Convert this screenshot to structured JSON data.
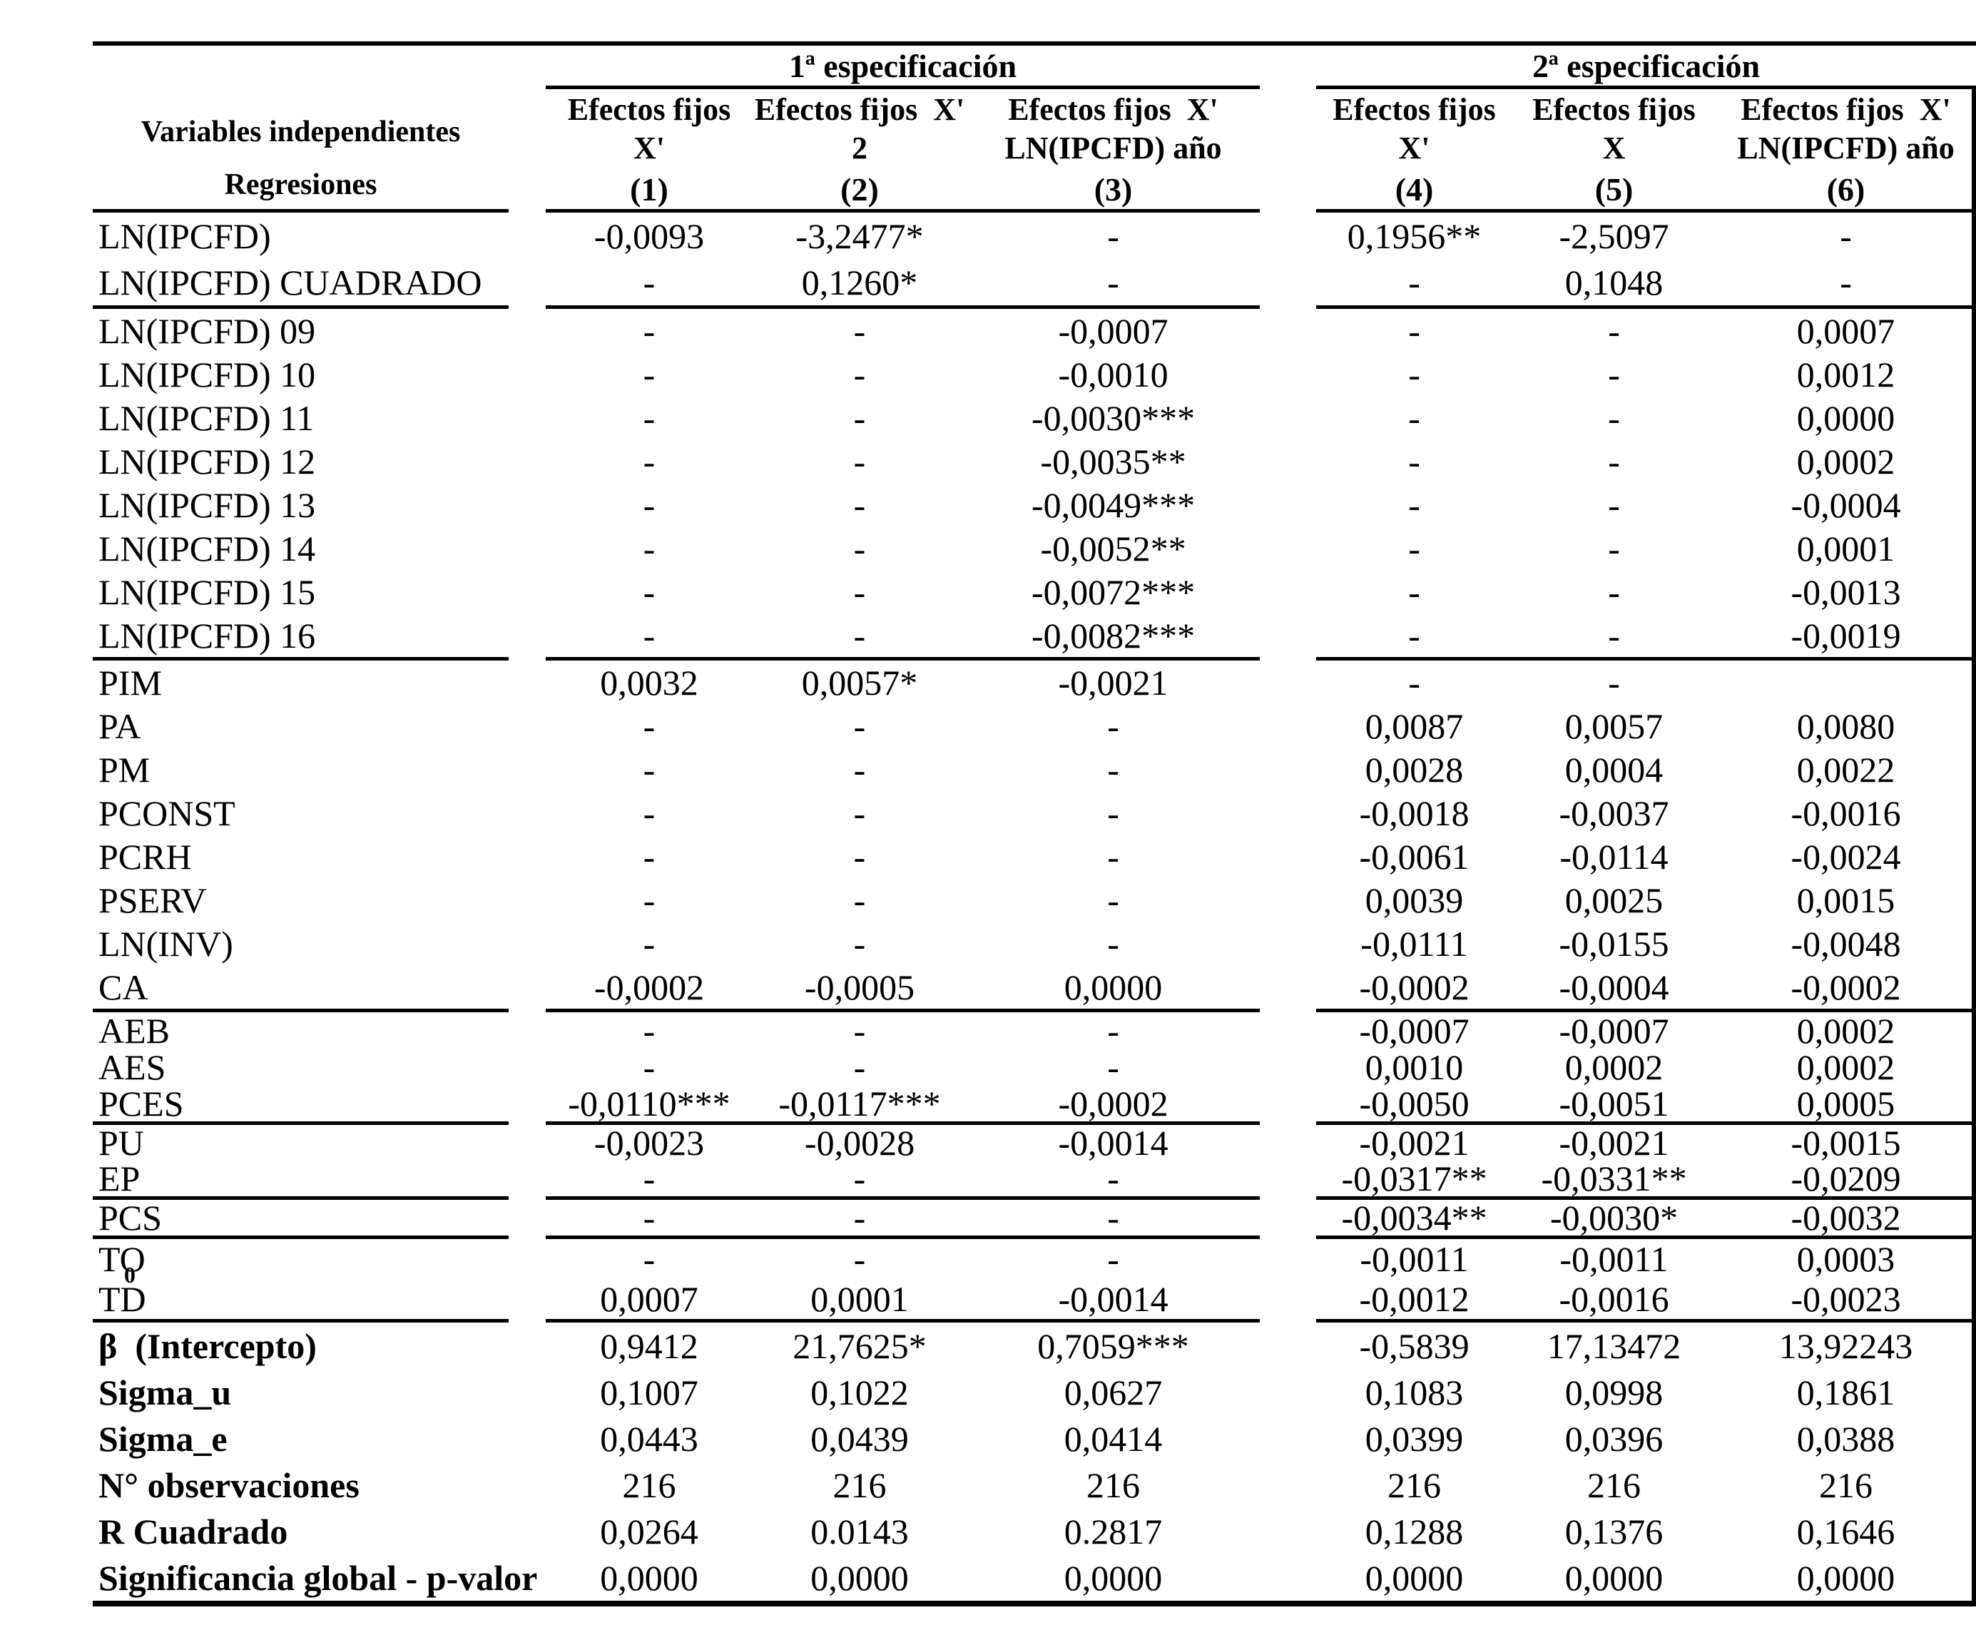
{
  "page": {
    "background": "#ffffff",
    "text_color": "#000000"
  },
  "table": {
    "spec_groups": {
      "group1": "1ª especificación",
      "group2": "2ª especificación"
    },
    "corner": {
      "line1": "Variables independientes",
      "line2": "Regresiones"
    },
    "col_headers": [
      {
        "line1": "Efectos fijos",
        "line2": "X'",
        "num": "(1)"
      },
      {
        "line1": "Efectos fijos  X'",
        "line2": "2",
        "num": "(2)"
      },
      {
        "line1": "Efectos fijos  X'",
        "line2": "LN(IPCFD) año",
        "num": "(3)"
      },
      {
        "line1": "Efectos fijos",
        "line2": "X'",
        "num": "(4)"
      },
      {
        "line1": "Efectos fijos",
        "line2": "X",
        "num": "(5)"
      },
      {
        "line1": "Efectos fijos  X'",
        "line2": "LN(IPCFD) año",
        "num": "(6)"
      }
    ],
    "rows": [
      {
        "label": "LN(IPCFD)",
        "block": "a",
        "v": [
          "-0,0093",
          "-3,2477*",
          "-",
          "0,1956**",
          "-2,5097",
          "-"
        ]
      },
      {
        "label": "LN(IPCFD) CUADRADO",
        "block": "a",
        "rule_after": true,
        "v": [
          "-",
          "0,1260*",
          "-",
          "-",
          "0,1048",
          "-"
        ]
      },
      {
        "label": "LN(IPCFD) 09",
        "block": "b",
        "v": [
          "-",
          "-",
          "-0,0007",
          "-",
          "-",
          "0,0007"
        ]
      },
      {
        "label": "LN(IPCFD) 10",
        "block": "b",
        "v": [
          "-",
          "-",
          "-0,0010",
          "-",
          "-",
          "0,0012"
        ]
      },
      {
        "label": "LN(IPCFD) 11",
        "block": "b",
        "v": [
          "-",
          "-",
          "-0,0030***",
          "-",
          "-",
          "0,0000"
        ]
      },
      {
        "label": "LN(IPCFD) 12",
        "block": "b",
        "v": [
          "-",
          "-",
          "-0,0035**",
          "-",
          "-",
          "0,0002"
        ]
      },
      {
        "label": "LN(IPCFD) 13",
        "block": "b",
        "v": [
          "-",
          "-",
          "-0,0049***",
          "-",
          "-",
          "-0,0004"
        ]
      },
      {
        "label": "LN(IPCFD) 14",
        "block": "b",
        "v": [
          "-",
          "-",
          "-0,0052**",
          "-",
          "-",
          "0,0001"
        ]
      },
      {
        "label": "LN(IPCFD) 15",
        "block": "b",
        "v": [
          "-",
          "-",
          "-0,0072***",
          "-",
          "-",
          "-0,0013"
        ]
      },
      {
        "label": "LN(IPCFD) 16",
        "block": "b",
        "rule_after": true,
        "v": [
          "-",
          "-",
          "-0,0082***",
          "-",
          "-",
          "-0,0019"
        ]
      },
      {
        "label": "PIM",
        "block": "c",
        "v": [
          "0,0032",
          "0,0057*",
          "-0,0021",
          "-",
          "-",
          ""
        ]
      },
      {
        "label": "PA",
        "block": "c",
        "v": [
          "-",
          "-",
          "-",
          "0,0087",
          "0,0057",
          "0,0080"
        ]
      },
      {
        "label": "PM",
        "block": "c",
        "v": [
          "-",
          "-",
          "-",
          "0,0028",
          "0,0004",
          "0,0022"
        ]
      },
      {
        "label": "PCONST",
        "block": "c",
        "v": [
          "-",
          "-",
          "-",
          "-0,0018",
          "-0,0037",
          "-0,0016"
        ]
      },
      {
        "label": "PCRH",
        "block": "c",
        "v": [
          "-",
          "-",
          "-",
          "-0,0061",
          "-0,0114",
          "-0,0024"
        ]
      },
      {
        "label": "PSERV",
        "block": "c",
        "v": [
          "-",
          "-",
          "-",
          "0,0039",
          "0,0025",
          "0,0015"
        ]
      },
      {
        "label": "LN(INV)",
        "block": "c",
        "v": [
          "-",
          "-",
          "-",
          "-0,0111",
          "-0,0155",
          "-0,0048"
        ]
      },
      {
        "label": "CA",
        "block": "c",
        "rule_after": true,
        "v": [
          "-0,0002",
          "-0,0005",
          "0,0000",
          "-0,0002",
          "-0,0004",
          "-0,0002"
        ]
      },
      {
        "label": "AEB",
        "block": "d",
        "v": [
          "-",
          "-",
          "-",
          "-0,0007",
          "-0,0007",
          "0,0002"
        ]
      },
      {
        "label": "AES",
        "block": "d",
        "v": [
          "-",
          "-",
          "-",
          "0,0010",
          "0,0002",
          "0,0002"
        ]
      },
      {
        "label": "PCES",
        "block": "d",
        "rule_after": true,
        "v": [
          "-0,0110***",
          "-0,0117***",
          "-0,0002",
          "-0,0050",
          "-0,0051",
          "0,0005"
        ]
      },
      {
        "label": "PU",
        "block": "e",
        "v": [
          "-0,0023",
          "-0,0028",
          "-0,0014",
          "-0,0021",
          "-0,0021",
          "-0,0015"
        ]
      },
      {
        "label": "EP",
        "block": "e",
        "rule_after": true,
        "v": [
          "-",
          "-",
          "-",
          "-0,0317**",
          "-0,0331**",
          "-0,0209"
        ]
      },
      {
        "label": "PCS",
        "block": "f",
        "rule_after": true,
        "v": [
          "-",
          "-",
          "-",
          "-0,0034**",
          "-0,0030*",
          "-0,0032"
        ]
      },
      {
        "label": "TO",
        "block": "g",
        "v": [
          "-",
          "-",
          "-",
          "-0,0011",
          "-0,0011",
          "0,0003"
        ]
      },
      {
        "label": "TD",
        "block": "g",
        "rule_after": true,
        "mark": "0",
        "v": [
          "0,0007",
          "0,0001",
          "-0,0014",
          "-0,0012",
          "-0,0016",
          "-0,0023"
        ]
      },
      {
        "label": "β  (Intercepto)",
        "block": "s",
        "bold": true,
        "v": [
          "0,9412",
          "21,7625*",
          "0,7059***",
          "-0,5839",
          "17,13472",
          "13,92243"
        ]
      },
      {
        "label": "Sigma_u",
        "block": "s",
        "bold": true,
        "v": [
          "0,1007",
          "0,1022",
          "0,0627",
          "0,1083",
          "0,0998",
          "0,1861"
        ]
      },
      {
        "label": "Sigma_e",
        "block": "s",
        "bold": true,
        "v": [
          "0,0443",
          "0,0439",
          "0,0414",
          "0,0399",
          "0,0396",
          "0,0388"
        ]
      },
      {
        "label": "N° observaciones",
        "block": "s",
        "bold": true,
        "v": [
          "216",
          "216",
          "216",
          "216",
          "216",
          "216"
        ]
      },
      {
        "label": "R Cuadrado",
        "block": "s",
        "bold": true,
        "v": [
          "0,0264",
          "0.0143",
          "0.2817",
          "0,1288",
          "0,1376",
          "0,1646"
        ]
      },
      {
        "label": "Significancia global - p-valor",
        "block": "s",
        "bold": true,
        "v": [
          "0,0000",
          "0,0000",
          "0,0000",
          "0,0000",
          "0,0000",
          "0,0000"
        ]
      }
    ]
  }
}
